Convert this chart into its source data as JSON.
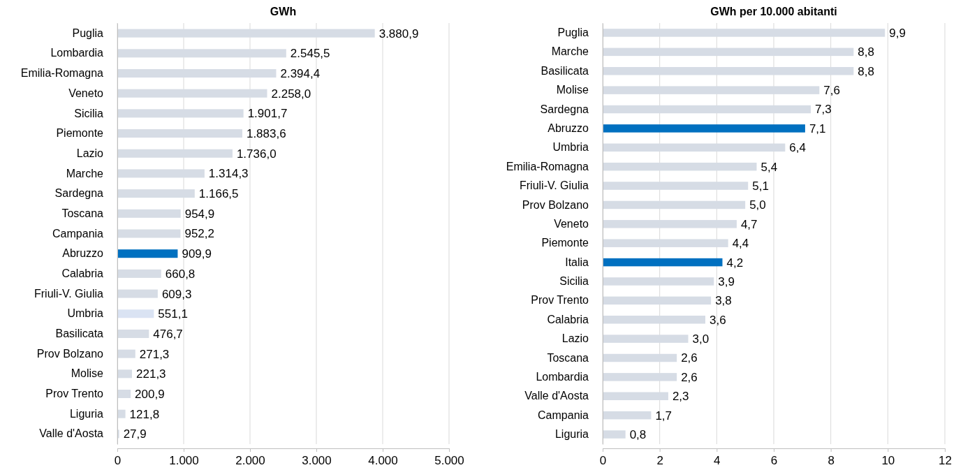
{
  "chart_data": [
    {
      "type": "bar",
      "orientation": "horizontal",
      "title": "GWh",
      "categories": [
        "Puglia",
        "Lombardia",
        "Emilia-Romagna",
        "Veneto",
        "Sicilia",
        "Piemonte",
        "Lazio",
        "Marche",
        "Sardegna",
        "Toscana",
        "Campania",
        "Abruzzo",
        "Calabria",
        "Friuli-V. Giulia",
        "Umbria",
        "Basilicata",
        "Prov Bolzano",
        "Molise",
        "Prov Trento",
        "Liguria",
        "Valle d'Aosta"
      ],
      "values": [
        3880.9,
        2545.5,
        2394.4,
        2258.0,
        1901.7,
        1883.6,
        1736.0,
        1314.3,
        1166.5,
        954.9,
        952.2,
        909.9,
        660.8,
        609.3,
        551.1,
        476.7,
        271.3,
        221.3,
        200.9,
        121.8,
        27.9
      ],
      "value_labels": [
        "3.880,9",
        "2.545,5",
        "2.394,4",
        "2.258,0",
        "1.901,7",
        "1.883,6",
        "1.736,0",
        "1.314,3",
        "1.166,5",
        "954,9",
        "952,2",
        "909,9",
        "660,8",
        "609,3",
        "551,1",
        "476,7",
        "271,3",
        "221,3",
        "200,9",
        "121,8",
        "27,9"
      ],
      "colors": [
        "#d6dce5",
        "#d6dce5",
        "#d6dce5",
        "#d6dce5",
        "#d6dce5",
        "#d6dce5",
        "#d6dce5",
        "#d6dce5",
        "#d6dce5",
        "#d6dce5",
        "#d6dce5",
        "#0070c0",
        "#d6dce5",
        "#d6dce5",
        "#dae3f3",
        "#d6dce5",
        "#d6dce5",
        "#d6dce5",
        "#d6dce5",
        "#d6dce5",
        "#d6dce5"
      ],
      "xlim": [
        0,
        5000
      ],
      "xticks": [
        0,
        {
          "value": 1000,
          "label": "1.000"
        },
        {
          "value": 2000,
          "label": "2.000"
        },
        {
          "value": 3000,
          "label": "3.000"
        },
        {
          "value": 4000,
          "label": "4.000"
        },
        {
          "value": 5000,
          "label": "5.000"
        }
      ],
      "grid": "x"
    },
    {
      "type": "bar",
      "orientation": "horizontal",
      "title": "GWh per 10.000 abitanti",
      "categories": [
        "Puglia",
        "Marche",
        "Basilicata",
        "Molise",
        "Sardegna",
        "Abruzzo",
        "Umbria",
        "Emilia-Romagna",
        "Friuli-V. Giulia",
        "Prov Bolzano",
        "Veneto",
        "Piemonte",
        "Italia",
        "Sicilia",
        "Prov Trento",
        "Calabria",
        "Lazio",
        "Toscana",
        "Lombardia",
        "Valle d'Aosta",
        "Campania",
        "Liguria"
      ],
      "values": [
        9.9,
        8.8,
        8.8,
        7.6,
        7.3,
        7.1,
        6.4,
        5.4,
        5.1,
        5.0,
        4.7,
        4.4,
        4.2,
        3.9,
        3.8,
        3.6,
        3.0,
        2.6,
        2.6,
        2.3,
        1.7,
        0.8
      ],
      "value_labels": [
        "9,9",
        "8,8",
        "8,8",
        "7,6",
        "7,3",
        "7,1",
        "6,4",
        "5,4",
        "5,1",
        "5,0",
        "4,7",
        "4,4",
        "4,2",
        "3,9",
        "3,8",
        "3,6",
        "3,0",
        "2,6",
        "2,6",
        "2,3",
        "1,7",
        "0,8"
      ],
      "colors": [
        "#d6dce5",
        "#d6dce5",
        "#d6dce5",
        "#d6dce5",
        "#d6dce5",
        "#0070c0",
        "#d6dce5",
        "#d6dce5",
        "#d6dce5",
        "#d6dce5",
        "#d6dce5",
        "#d6dce5",
        "#0070c0",
        "#d6dce5",
        "#d6dce5",
        "#d6dce5",
        "#d6dce5",
        "#d6dce5",
        "#d6dce5",
        "#d6dce5",
        "#d6dce5",
        "#d6dce5"
      ],
      "xlim": [
        0,
        12
      ],
      "xticks": [
        0,
        2,
        4,
        6,
        8,
        10,
        12
      ],
      "grid": "x"
    }
  ]
}
